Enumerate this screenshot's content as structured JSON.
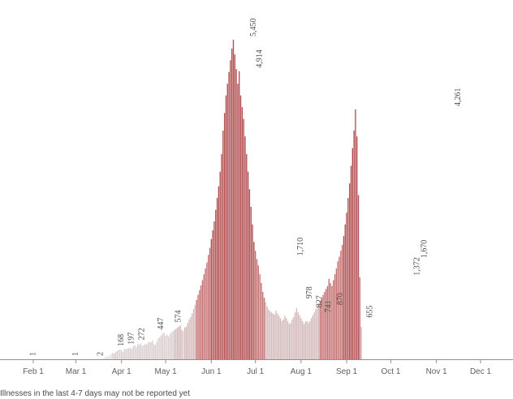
{
  "chart_data": {
    "type": "bar",
    "title": "",
    "xlabel": "",
    "ylabel": "",
    "grid": false,
    "ylim": [
      0,
      5450
    ],
    "x_start_date": "2020-02-01",
    "x_end_date": "2020-11-20",
    "x_tick_labels": [
      "Feb 1",
      "Mar 1",
      "Apr 1",
      "May 1",
      "Jun 1",
      "Jul 1",
      "Aug 1",
      "Sep 1",
      "Oct 1",
      "Nov 1",
      "Dec 1"
    ],
    "x_tick_dates": [
      "2020-02-01",
      "2020-03-01",
      "2020-04-01",
      "2020-05-01",
      "2020-06-01",
      "2020-07-01",
      "2020-08-01",
      "2020-09-01",
      "2020-10-01",
      "2020-11-01",
      "2020-12-01"
    ],
    "values": [
      1,
      0,
      0,
      0,
      0,
      0,
      0,
      0,
      0,
      0,
      0,
      0,
      0,
      0,
      0,
      0,
      0,
      0,
      0,
      0,
      0,
      0,
      0,
      0,
      0,
      0,
      0,
      0,
      0,
      1,
      0,
      0,
      0,
      0,
      0,
      0,
      0,
      0,
      0,
      0,
      0,
      0,
      0,
      0,
      0,
      0,
      2,
      10,
      20,
      35,
      50,
      45,
      70,
      90,
      110,
      100,
      125,
      140,
      160,
      168,
      150,
      120,
      180,
      170,
      185,
      190,
      197,
      170,
      220,
      240,
      210,
      260,
      250,
      272,
      230,
      240,
      260,
      250,
      280,
      300,
      290,
      320,
      260,
      240,
      300,
      360,
      380,
      410,
      440,
      447,
      400,
      420,
      390,
      430,
      460,
      480,
      500,
      520,
      540,
      560,
      574,
      500,
      480,
      540,
      560,
      620,
      680,
      720,
      780,
      860,
      930,
      1010,
      1100,
      1180,
      1260,
      1350,
      1450,
      1550,
      1650,
      1780,
      1900,
      2050,
      2200,
      2350,
      2550,
      2750,
      2950,
      3200,
      3500,
      3900,
      4200,
      4500,
      4700,
      4900,
      5100,
      5300,
      5450,
      5200,
      4950,
      4700,
      4914,
      4500,
      4300,
      4100,
      3800,
      3500,
      3200,
      2900,
      2600,
      2300,
      2000,
      1850,
      1710,
      1600,
      1450,
      1300,
      1150,
      1050,
      978,
      900,
      850,
      820,
      800,
      780,
      760,
      827,
      780,
      740,
      700,
      650,
      680,
      741,
      700,
      650,
      600,
      620,
      680,
      720,
      800,
      870,
      800,
      750,
      700,
      650,
      600,
      640,
      655,
      620,
      650,
      700,
      750,
      800,
      850,
      900,
      950,
      1000,
      1050,
      1100,
      1150,
      1200,
      1250,
      1372,
      1300,
      1250,
      1350,
      1450,
      1550,
      1670,
      1750,
      1850,
      1950,
      2100,
      2300,
      2500,
      2750,
      3000,
      3300,
      3600,
      3900,
      4261,
      3800,
      2800,
      1400,
      550
    ],
    "label_dates": [
      "2020-02-01",
      "2020-03-01",
      "2020-03-18",
      "2020-04-01",
      "2020-04-08",
      "2020-04-15",
      "2020-04-28",
      "2020-05-10",
      "2020-06-30",
      "2020-07-04",
      "2020-08-01",
      "2020-08-07",
      "2020-08-14",
      "2020-08-20",
      "2020-08-28",
      "2020-09-17",
      "2020-10-19",
      "2020-10-24",
      "2020-11-16"
    ],
    "label_values": [
      1,
      1,
      2,
      168,
      197,
      272,
      447,
      574,
      5450,
      4914,
      1710,
      978,
      827,
      741,
      870,
      655,
      1372,
      1670,
      4261
    ],
    "label_text": [
      "1",
      "1",
      "2",
      "168",
      "197",
      "272",
      "447",
      "574",
      "5,450",
      "4,914",
      "1,710",
      "978",
      "827",
      "741",
      "870",
      "655",
      "1,372",
      "1,670",
      "4,261"
    ],
    "footnote": "Illnesses in the last 4-7 days may not be reported yet",
    "colors": {
      "background": "#ffffff",
      "bar_base": "#d9cfcf",
      "bar_light": "#e6dddd",
      "bar_mid": "#d3b9b9",
      "bar_high": "#c46f6f",
      "bar_peak": "#b24e4e",
      "axis": "#8f8f8f",
      "text": "#5a5a5a"
    }
  }
}
